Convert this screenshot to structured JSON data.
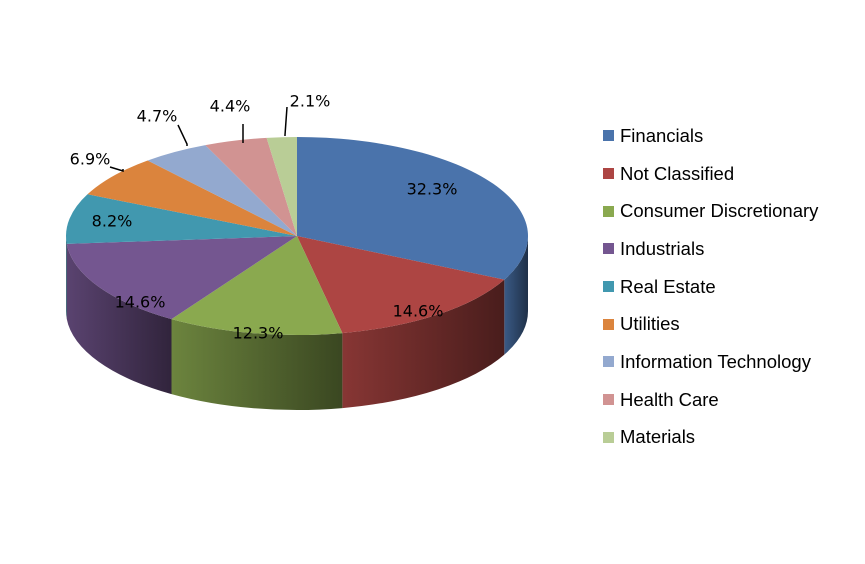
{
  "chart_data": {
    "type": "pie",
    "title": "",
    "legend_position": "right",
    "slices": [
      {
        "label": "Financials",
        "value": 32.3,
        "value_label": "32.3%",
        "color": "#4A73AB"
      },
      {
        "label": "Not Classified",
        "value": 14.6,
        "value_label": "14.6%",
        "color": "#AD4543"
      },
      {
        "label": "Consumer Discretionary",
        "value": 12.3,
        "value_label": "12.3%",
        "color": "#8AA94F"
      },
      {
        "label": "Industrials",
        "value": 14.6,
        "value_label": "14.6%",
        "color": "#745690"
      },
      {
        "label": "Real Estate",
        "value": 8.2,
        "value_label": "8.2%",
        "color": "#4198AF"
      },
      {
        "label": "Utilities",
        "value": 6.9,
        "value_label": "6.9%",
        "color": "#DB843D"
      },
      {
        "label": "Information Technology",
        "value": 4.7,
        "value_label": "4.7%",
        "color": "#93A9CF"
      },
      {
        "label": "Health Care",
        "value": 4.4,
        "value_label": "4.4%",
        "color": "#D19392"
      },
      {
        "label": "Materials",
        "value": 2.1,
        "value_label": "2.1%",
        "color": "#B9CD96"
      }
    ]
  }
}
